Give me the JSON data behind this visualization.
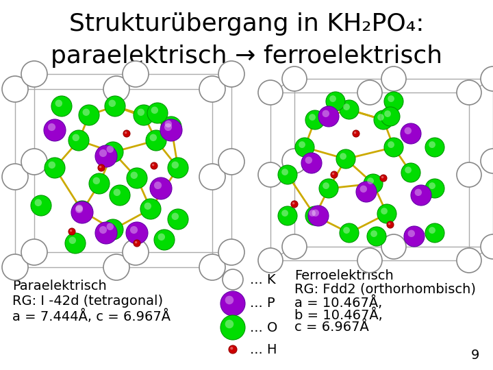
{
  "bg_color": "#ffffff",
  "title_fontsize": 26,
  "text_fontsize": 14,
  "left_label1": "Paraelektrisch",
  "left_label2": "RG: I -42d (tetragonal)",
  "left_label3": "a = 7.444Å, c = 6.967Å",
  "right_label1": "Ferroelektrisch",
  "right_label2": "RG: Fdd2 (orthorhombisch)",
  "right_label3": "a = 10.467Å,",
  "right_label4": "b = 10.467Å,",
  "right_label5": "c = 6.967Å",
  "legend_K": "... K",
  "legend_P": "... P",
  "legend_O": "... O",
  "legend_H": "... H",
  "color_K": "#ffffff",
  "color_K_edge": "#888888",
  "color_P": "#9900cc",
  "color_O": "#00dd00",
  "color_H": "#cc0000",
  "color_bond": "#ccaa00",
  "color_box": "#aaaaaa",
  "page_number": "9"
}
